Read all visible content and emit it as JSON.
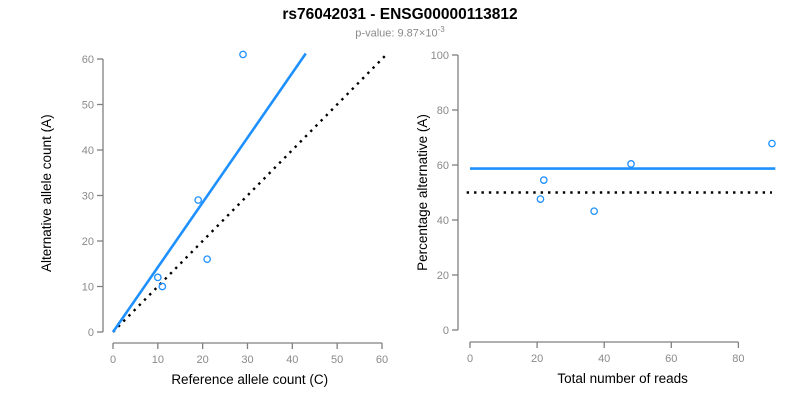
{
  "header": {
    "title": "rs76042031 - ENSG00000113812",
    "subtitle_prefix": "p-value: 9.87×10",
    "subtitle_exponent": "-3"
  },
  "colors": {
    "accent_blue": "#1E90FF",
    "axis_gray": "#808080",
    "tick_label_gray": "#8a8a8a",
    "axis_title_black": "#000000",
    "dotted_line_black": "#000000",
    "title_black": "#000000",
    "subtitle_gray": "#8a8a8a"
  },
  "chart_data": [
    {
      "type": "scatter",
      "name": "ref-vs-alt-count",
      "xlabel": "Reference allele count (C)",
      "ylabel": "Alternative allele count (A)",
      "xlim": [
        0,
        61
      ],
      "ylim": [
        0,
        61
      ],
      "xticks": [
        0,
        10,
        20,
        30,
        40,
        50,
        60
      ],
      "yticks": [
        0,
        10,
        20,
        30,
        40,
        50,
        60
      ],
      "grid": false,
      "legend": null,
      "points": [
        [
          10,
          12
        ],
        [
          11,
          10
        ],
        [
          19,
          29
        ],
        [
          21,
          16
        ],
        [
          29,
          61
        ]
      ],
      "lines": [
        {
          "name": "identity-line",
          "style": "dotted",
          "color": "#000000",
          "x1": 0,
          "y1": 0,
          "x2": 61,
          "y2": 61
        },
        {
          "name": "fit-line",
          "style": "solid",
          "color": "#1E90FF",
          "x1": 0,
          "y1": 0,
          "x2": 43,
          "y2": 61.2
        }
      ]
    },
    {
      "type": "scatter",
      "name": "total-reads-vs-percentage",
      "xlabel": "Total number of reads",
      "ylabel": "Percentage alternative (A)",
      "xlim": [
        0,
        91
      ],
      "ylim": [
        0,
        100
      ],
      "xticks": [
        0,
        20,
        40,
        60,
        80
      ],
      "yticks": [
        0,
        20,
        40,
        60,
        80,
        100
      ],
      "grid": false,
      "legend": null,
      "points": [
        [
          21,
          47.6
        ],
        [
          22,
          54.5
        ],
        [
          37,
          43.2
        ],
        [
          48,
          60.4
        ],
        [
          90,
          67.8
        ]
      ],
      "lines": [
        {
          "name": "mean-percentage-line",
          "style": "solid",
          "color": "#1E90FF",
          "x1": 0,
          "y1": 58.7,
          "x2": 91,
          "y2": 58.7
        },
        {
          "name": "null-50pct-line",
          "style": "dotted",
          "color": "#000000",
          "x1": -1,
          "y1": 50,
          "x2": 90,
          "y2": 50
        }
      ]
    }
  ]
}
